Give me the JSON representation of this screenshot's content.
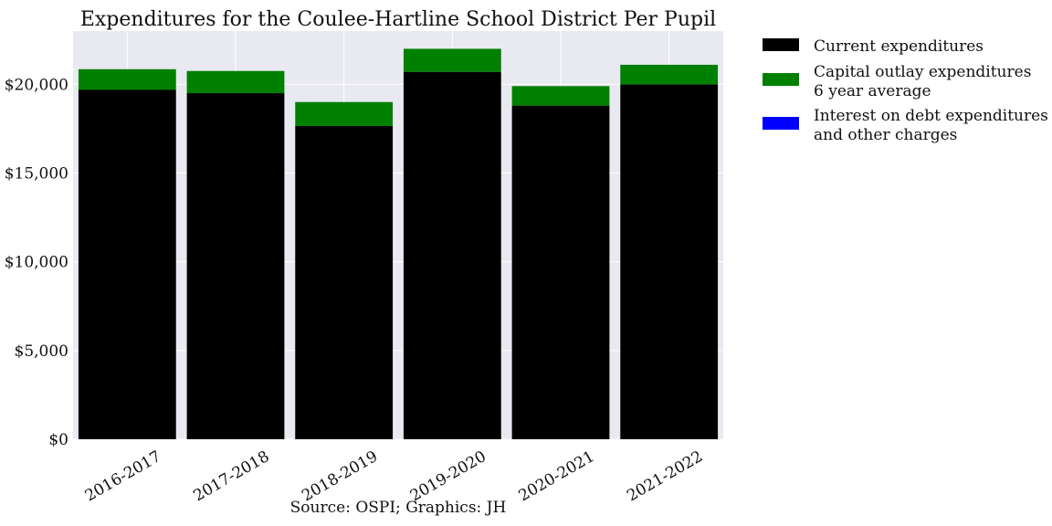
{
  "chart_data": {
    "type": "bar",
    "stacked": true,
    "title": "Expenditures for the Coulee-Hartline School District Per Pupil",
    "caption": "Source: OSPI; Graphics: JH",
    "xlabel": "",
    "ylabel": "",
    "categories": [
      "2016-2017",
      "2017-2018",
      "2018-2019",
      "2019-2020",
      "2020-2021",
      "2021-2022"
    ],
    "series": [
      {
        "name": "Current expenditures",
        "color": "#000000",
        "values": [
          19700,
          19500,
          17650,
          20700,
          18800,
          20000
        ]
      },
      {
        "name": "Capital outlay expenditures\n6 year average",
        "color": "#008000",
        "values": [
          1150,
          1250,
          1350,
          1300,
          1100,
          1100
        ]
      },
      {
        "name": "Interest on debt expenditures\nand other charges",
        "color": "#0000ff",
        "values": [
          0,
          0,
          0,
          0,
          0,
          0
        ]
      }
    ],
    "ylim": [
      0,
      23000
    ],
    "yticks": [
      0,
      5000,
      10000,
      15000,
      20000
    ],
    "ytick_labels": [
      "$0",
      "$5,000",
      "$10,000",
      "$15,000",
      "$20,000"
    ],
    "grid": true,
    "legend_position": "outside-right-top",
    "background": "#e9e9f1",
    "grid_color": "#ffffff"
  }
}
